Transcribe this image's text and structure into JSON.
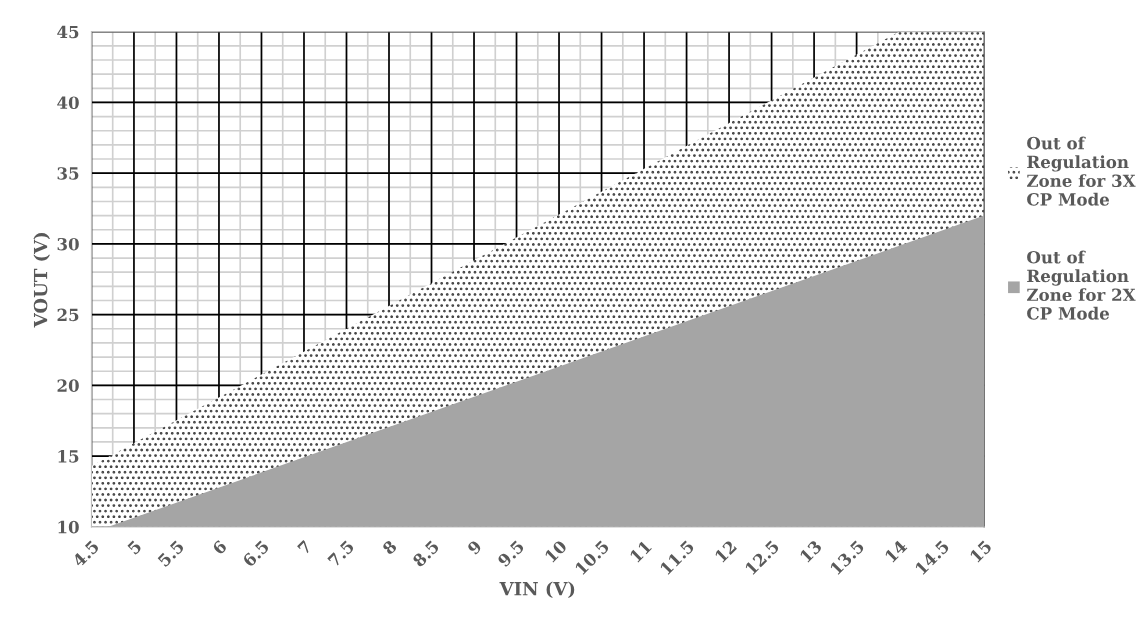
{
  "chart_data": {
    "type": "area",
    "xlabel": "VIN (V)",
    "ylabel": "VOUT (V)",
    "xlim": [
      4.5,
      15
    ],
    "ylim": [
      10,
      45
    ],
    "xticks": [
      4.5,
      5,
      5.5,
      6,
      6.5,
      7,
      7.5,
      8,
      8.5,
      9,
      9.5,
      10,
      10.5,
      11,
      11.5,
      12,
      12.5,
      13,
      13.5,
      14,
      14.5,
      15
    ],
    "yticks": [
      10,
      15,
      20,
      25,
      30,
      35,
      40,
      45
    ],
    "grid": true,
    "legend": "right",
    "series": [
      {
        "name": "Out of Regulation Zone for 3X CP Mode",
        "color": "#404040",
        "x": [
          4.5,
          14,
          15
        ],
        "values": [
          14.3,
          45,
          45
        ]
      },
      {
        "name": "Out of Regulation Zone for 2X CP Mode",
        "color": "#a5a5a5",
        "x": [
          4.7,
          15
        ],
        "values": [
          10,
          32
        ]
      }
    ]
  }
}
